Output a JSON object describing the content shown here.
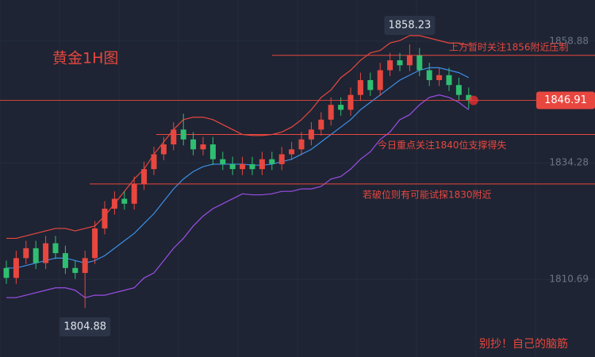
{
  "chart_data": {
    "type": "candlestick",
    "title": "黄金1H图",
    "footer": "别抄！自己的脑筋",
    "ylim": [
      1795,
      1867.2
    ],
    "yticks": [
      1810.69,
      1834.28,
      1858.88
    ],
    "up_color": "#e8473f",
    "down_color": "#2fbf71",
    "open": [
      1813,
      1811,
      1815,
      1817,
      1814,
      1818,
      1816,
      1813,
      1812,
      1815,
      1821,
      1825,
      1827,
      1826,
      1830,
      1833,
      1836,
      1838,
      1841,
      1839,
      1837,
      1838,
      1835,
      1834,
      1833,
      1834,
      1833,
      1835,
      1834,
      1836,
      1837,
      1839,
      1841,
      1843,
      1846,
      1845,
      1848,
      1851,
      1849,
      1853,
      1855,
      1854,
      1856,
      1853,
      1851,
      1852,
      1850,
      1848
    ],
    "high": [
      1814.5,
      1816.5,
      1818.5,
      1818.5,
      1819.5,
      1819.5,
      1817.5,
      1814.5,
      1816.5,
      1822.5,
      1826.5,
      1828.5,
      1828.5,
      1831.5,
      1834.5,
      1837.5,
      1839.5,
      1842.5,
      1844.2,
      1840.5,
      1839.5,
      1839.5,
      1836.5,
      1835.5,
      1835.5,
      1835.5,
      1836.5,
      1836.5,
      1837.5,
      1838.5,
      1840.5,
      1842.5,
      1844.5,
      1847.5,
      1847.5,
      1849.5,
      1852.5,
      1852.5,
      1854.5,
      1856.5,
      1856.5,
      1858.23,
      1857.5,
      1854.5,
      1853.5,
      1853.5,
      1851.5,
      1849.5
    ],
    "low": [
      1809.8,
      1809.8,
      1813.8,
      1812.8,
      1812.8,
      1814.8,
      1811.8,
      1810.8,
      1804.88,
      1813.8,
      1819.8,
      1823.8,
      1824.8,
      1824.8,
      1828.8,
      1831.8,
      1834.8,
      1836.8,
      1837.8,
      1835.8,
      1835.8,
      1833.8,
      1832.8,
      1831.8,
      1831.8,
      1831.8,
      1831.8,
      1832.8,
      1832.8,
      1834.8,
      1835.8,
      1837.8,
      1839.8,
      1841.8,
      1843.8,
      1843.8,
      1846.8,
      1847.8,
      1847.8,
      1851.8,
      1852.8,
      1852.8,
      1851.8,
      1849.8,
      1849.8,
      1848.8,
      1846.8,
      1845.2
    ],
    "close": [
      1811,
      1815,
      1817,
      1814,
      1818,
      1816,
      1813,
      1812,
      1815,
      1821,
      1825,
      1827,
      1826,
      1830,
      1833,
      1836,
      1838,
      1841,
      1839,
      1837,
      1838,
      1835,
      1834,
      1833,
      1834,
      1833,
      1835,
      1834,
      1836,
      1837,
      1839,
      1841,
      1843,
      1846,
      1845,
      1848,
      1851,
      1849,
      1853,
      1855,
      1854,
      1856,
      1853,
      1851,
      1852,
      1850,
      1848,
      1846.91
    ],
    "bands": [
      {
        "color": "#e8473f",
        "values": [
          1819,
          1819,
          1819.5,
          1820,
          1820.5,
          1821,
          1821,
          1820.5,
          1821,
          1821.5,
          1823.5,
          1826,
          1828.5,
          1831,
          1833,
          1836,
          1838.5,
          1841,
          1843,
          1843.5,
          1843.5,
          1843,
          1842,
          1841,
          1840,
          1839.8,
          1839.8,
          1840,
          1840.5,
          1841.5,
          1843,
          1845,
          1847.5,
          1849,
          1851.5,
          1853,
          1855,
          1856.5,
          1857,
          1858.5,
          1859,
          1860,
          1860,
          1859.5,
          1859,
          1858.5,
          1858.5,
          1858
        ]
      },
      {
        "color": "#3d8fe8",
        "values": [
          1813,
          1813,
          1813.5,
          1814,
          1814.5,
          1815,
          1815,
          1814.5,
          1814,
          1814.5,
          1815.5,
          1817,
          1818.5,
          1820,
          1822,
          1824,
          1826.5,
          1829,
          1831,
          1832.5,
          1833.5,
          1834,
          1834,
          1834,
          1834,
          1833.8,
          1833.8,
          1834,
          1834.5,
          1835,
          1836,
          1837,
          1838.5,
          1840,
          1841.5,
          1843,
          1845,
          1846.5,
          1848,
          1849.5,
          1851,
          1852,
          1853,
          1853.5,
          1853.5,
          1853,
          1852.5,
          1851.5
        ]
      },
      {
        "color": "#9b4de8",
        "values": [
          1807,
          1807,
          1807.5,
          1808,
          1808.5,
          1809,
          1809,
          1808.5,
          1807,
          1807.5,
          1807.5,
          1808,
          1808.5,
          1809,
          1811,
          1812,
          1814.5,
          1817,
          1819,
          1821.5,
          1823.5,
          1825,
          1826,
          1827,
          1828,
          1827.8,
          1827.8,
          1828,
          1828.5,
          1828.5,
          1829,
          1829,
          1829.5,
          1831,
          1831.5,
          1833,
          1835,
          1836.5,
          1839,
          1840.5,
          1843,
          1844,
          1846,
          1847.5,
          1848,
          1847.5,
          1846.5,
          1845
        ]
      }
    ],
    "levels": [
      {
        "value": 1856,
        "label": "上方暂时关注1856附近压制"
      },
      {
        "value": 1840,
        "label": "今日重点关注1840位支撑得失"
      },
      {
        "value": 1830,
        "label": "若破位则有可能试探1830附近"
      }
    ]
  }
}
